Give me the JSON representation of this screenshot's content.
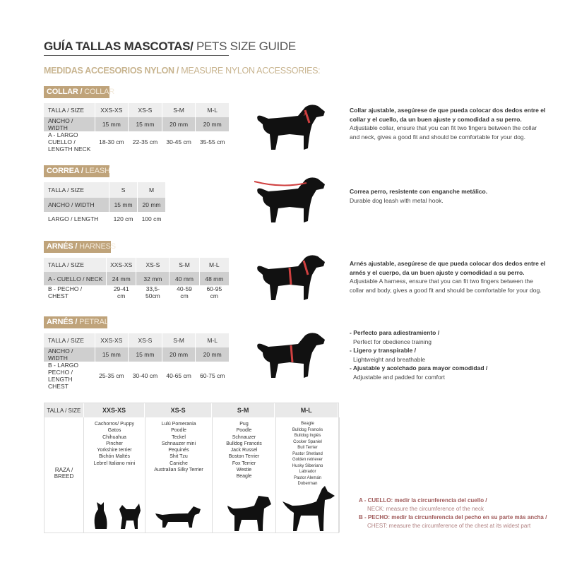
{
  "title": {
    "es": "GUÍA TALLAS MASCOTAS/",
    "en": " PETS SIZE GUIDE"
  },
  "subtitle": {
    "es": "MEDIDAS ACCESORIOS NYLON /",
    "en": " MEASURE NYLON ACCESSORIES:"
  },
  "collar": {
    "label_es": "COLLAR /",
    "label_en": " COLLAR",
    "rows": [
      [
        "TALLA / SIZE",
        "XXS-XS",
        "XS-S",
        "S-M",
        "M-L"
      ],
      [
        "ANCHO / WIDTH",
        "15 mm",
        "15 mm",
        "20 mm",
        "20 mm"
      ],
      [
        "A - LARGO CUELLO / LENGTH NECK",
        "18-30 cm",
        "22-35 cm",
        "30-45 cm",
        "35-55 cm"
      ]
    ],
    "desc_es": "Collar ajustable, asegúrese de que pueda colocar dos dedos entre el collar y el cuello, da un buen ajuste y comodidad a su perro.",
    "desc_en": "Adjustable collar, ensure that you can fit two fingers between the collar and neck, gives a good fit and should be comfortable for your dog."
  },
  "leash": {
    "label_es": "CORREA /",
    "label_en": " LEASH",
    "rows": [
      [
        "TALLA / SIZE",
        "S",
        "M"
      ],
      [
        "ANCHO / WIDTH",
        "15 mm",
        "20 mm"
      ],
      [
        "LARGO / LENGTH",
        "120 cm",
        "100 cm"
      ]
    ],
    "desc_es": "Correa perro, resistente con enganche metálico.",
    "desc_en": "Durable dog leash with metal hook."
  },
  "harness": {
    "label_es": "ARNÉS /",
    "label_en": " HARNESS",
    "rows": [
      [
        "TALLA / SIZE",
        "XXS-XS",
        "XS-S",
        "S-M",
        "M-L"
      ],
      [
        "A - CUELLO / NECK",
        "24 mm",
        "32 mm",
        "40 mm",
        "48 mm"
      ],
      [
        "B - PECHO / CHEST",
        "29-41 cm",
        "33,5-50cm",
        "40-59 cm",
        "60-95 cm"
      ]
    ],
    "desc_es": "Arnés ajustable, asegúrese de que pueda colocar dos dedos entre el arnés y el cuerpo, da un buen ajuste y comodidad a su perro.",
    "desc_en": "Adjustable A harness, ensure that you can fit two fingers between the collar and body, gives a good fit and should be comfortable for your dog."
  },
  "petral": {
    "label_es": "ARNÉS /",
    "label_en": " PETRAL",
    "rows": [
      [
        "TALLA / SIZE",
        "XXS-XS",
        "XS-S",
        "S-M",
        "M-L"
      ],
      [
        "ANCHO / WIDTH",
        "15 mm",
        "15 mm",
        "20 mm",
        "20 mm"
      ],
      [
        "B - LARGO PECHO / LENGTH CHEST",
        "25-35 cm",
        "30-40 cm",
        "40-65 cm",
        "60-75 cm"
      ]
    ],
    "features": [
      {
        "es": "- Perfecto para adiestramiento /",
        "en": "Perfect for obedience training"
      },
      {
        "es": "- Ligero y transpirable /",
        "en": "Lightweight and breathable"
      },
      {
        "es": "- Ajustable y acolchado para mayor comodidad /",
        "en": "Adjustable and padded for comfort"
      }
    ]
  },
  "breeds": {
    "size_label": "TALLA /  SIZE",
    "breed_label": "RAZA / BREED",
    "columns": [
      {
        "size": "XXS-XS",
        "list": "Cachorros/ Puppy\nGatos\nChihuahua\nPincher\nYorkshire terrier\nBichón Maltés\nLebrel Italiano mini"
      },
      {
        "size": "XS-S",
        "list": "Lulú Pomerania\nPoodle\nTeckel\nSchnauzer mini\nPequinés\nShit Tzu\nCaniche\nAustralian Silky Terrier"
      },
      {
        "size": "S-M",
        "list": "Pug\nPoodle\nSchnauzer\nBulldog Francés\nJack Russel\nBoston Terrier\nFox Terrier\nWestie\nBeagle"
      },
      {
        "size": "M-L",
        "list": "Beagle\nBulldog Francés\nBulldog Inglés\nCocker Spaniel\nBull Terrier\nPastor Shetland\nGolden retriever\nHusky Siberiano\nLabrador\nPastor Alemán\nDoberman"
      }
    ]
  },
  "notes": [
    {
      "es": "A - CUELLO: medir la circunferencia del cuello /",
      "en": "NECK: measure the circumference of the neck"
    },
    {
      "es": "B - PECHO: medir la circunferencia del pecho en su parte más ancha /",
      "en": "CHEST: measure the circumference of the chest at its widest part"
    }
  ],
  "colors": {
    "accent": "#bfa37a",
    "note": "#a05a5a",
    "marker": "#d04040"
  }
}
